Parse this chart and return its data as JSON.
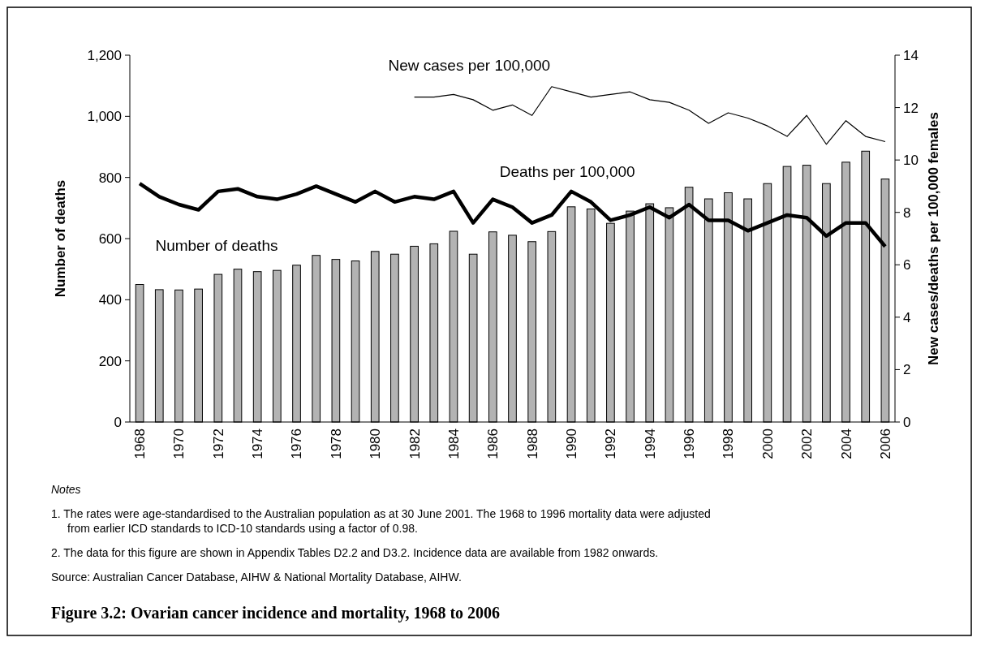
{
  "chart_data": {
    "type": "bar",
    "title": "Figure 3.2: Ovarian cancer incidence and mortality, 1968 to 2006",
    "categories": [
      "1968",
      null,
      "1970",
      null,
      "1972",
      null,
      "1974",
      null,
      "1976",
      null,
      "1978",
      null,
      "1980",
      null,
      "1982",
      null,
      "1984",
      null,
      "1986",
      null,
      "1988",
      null,
      "1990",
      null,
      "1992",
      null,
      "1994",
      null,
      "1996",
      null,
      "1998",
      null,
      "2000",
      null,
      "2002",
      null,
      "2004",
      null,
      "2006"
    ],
    "series": [
      {
        "name": "Number of deaths",
        "color": "#b3b3b3",
        "values": [
          450,
          433,
          432,
          435,
          483,
          500,
          492,
          496,
          513,
          545,
          532,
          527,
          558,
          549,
          575,
          583,
          624,
          549,
          622,
          611,
          590,
          623,
          704,
          697,
          650,
          690,
          714,
          701,
          768,
          730,
          750,
          730,
          780,
          836,
          840,
          780,
          850,
          886,
          795
        ]
      },
      {
        "name": "Deaths per 100,000",
        "type": "line",
        "axis": "y2",
        "color": "#000000",
        "values": [
          9.1,
          8.6,
          8.3,
          8.1,
          8.8,
          8.9,
          8.6,
          8.5,
          8.7,
          9.0,
          8.7,
          8.4,
          8.8,
          8.4,
          8.6,
          8.5,
          8.8,
          7.6,
          8.5,
          8.2,
          7.6,
          7.9,
          8.8,
          8.4,
          7.7,
          7.9,
          8.2,
          7.8,
          8.3,
          7.7,
          7.7,
          7.3,
          7.6,
          7.9,
          7.8,
          7.1,
          7.6,
          7.6,
          6.7
        ]
      },
      {
        "name": "New cases per 100,000",
        "type": "line",
        "axis": "y2",
        "color": "#000000",
        "values": [
          null,
          null,
          null,
          null,
          null,
          null,
          null,
          null,
          null,
          null,
          null,
          null,
          null,
          null,
          12.4,
          12.4,
          12.5,
          12.3,
          11.9,
          12.1,
          11.7,
          12.8,
          12.6,
          12.4,
          12.5,
          12.6,
          12.3,
          12.2,
          11.9,
          11.4,
          11.8,
          11.6,
          11.3,
          10.9,
          11.7,
          10.6,
          11.5,
          10.9,
          10.7
        ]
      }
    ],
    "ylabel": "Number of deaths",
    "y2label": "New cases/deaths per 100,000 females",
    "ylim": [
      0,
      1200
    ],
    "yticks": [
      0,
      200,
      400,
      600,
      800,
      {
        "value": 1000,
        "label": "1,000"
      },
      {
        "value": 1200,
        "label": "1,200"
      }
    ],
    "y2lim": [
      0,
      14
    ],
    "y2ticks": [
      0,
      2,
      4,
      6,
      8,
      10,
      12,
      14
    ],
    "grid": false,
    "legend": false,
    "marker": "none",
    "line_style": "solid",
    "annotations": [
      "Notes",
      "1. The rates were age-standardised to the Australian population as at 30 June 2001. The 1968 to 1996 mortality data were adjusted from earlier ICD standards to ICD-10 standards using a factor of 0.98.",
      "2. The data for this figure are shown in Appendix Tables D2.2 and D3.2. Incidence data are available from 1982 onwards.",
      "Source: Australian Cancer Database, AIHW & National Mortality Database, AIHW."
    ]
  }
}
